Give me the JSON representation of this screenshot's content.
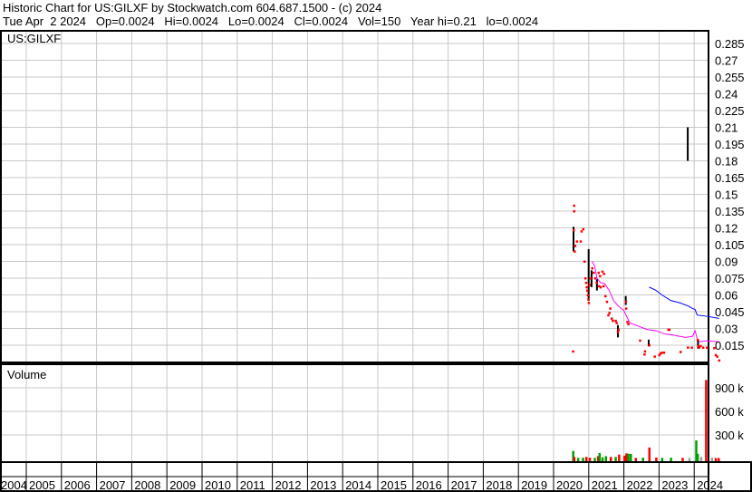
{
  "header": {
    "title": "Historic Chart for US:GILXF by Stockwatch.com 604.687.1500 - (c) 2024",
    "quote": "Tue Apr  2 2024   Op=0.0024   Hi=0.0024   Lo=0.0024   Cl=0.0024   Vol=150   Year hi=0.21   lo=0.0024"
  },
  "chart_data": [
    {
      "type": "scatter",
      "title": "US:GILXF",
      "ylim": [
        0,
        0.29
      ],
      "y_ticks": [
        "0.285",
        "0.27",
        "0.255",
        "0.24",
        "0.225",
        "0.21",
        "0.195",
        "0.18",
        "0.165",
        "0.15",
        "0.135",
        "0.12",
        "0.105",
        "0.09",
        "0.075",
        "0.06",
        "0.045",
        "0.03",
        "0.015"
      ],
      "x_ticks": [
        "2004",
        "2005",
        "2006",
        "2007",
        "2008",
        "2009",
        "2010",
        "2011",
        "2012",
        "2013",
        "2014",
        "2015",
        "2016",
        "2017",
        "2018",
        "2019",
        "2020",
        "2021",
        "2022",
        "2023",
        "2024"
      ],
      "grid": true,
      "colors": {
        "close": "#ff0000",
        "range": "#000000",
        "ma_short": "#ff00ff",
        "ma_long": "#0000ff"
      },
      "close_points": [
        [
          "2020-07-19",
          0.0096
        ],
        [
          "2020-07-25",
          0.118
        ],
        [
          "2020-07-29",
          0.14
        ],
        [
          "2020-07-30",
          0.135
        ],
        [
          "2020-08-10",
          0.104
        ],
        [
          "2020-08-05",
          0.099
        ],
        [
          "2020-08-29",
          0.108
        ],
        [
          "2020-10-07",
          0.108
        ],
        [
          "2020-10-16",
          0.117
        ],
        [
          "2020-11-03",
          0.119
        ],
        [
          "2020-11-16",
          0.09
        ],
        [
          "2020-11-25",
          0.075
        ],
        [
          "2020-12-02",
          0.071
        ],
        [
          "2020-12-08",
          0.067
        ],
        [
          "2020-12-14",
          0.064
        ],
        [
          "2020-12-20",
          0.06
        ],
        [
          "2020-12-26",
          0.056
        ],
        [
          "2020-12-30",
          0.053
        ],
        [
          "2021-01-08",
          0.069
        ],
        [
          "2021-01-14",
          0.075
        ],
        [
          "2021-02-05",
          0.084
        ],
        [
          "2021-02-20",
          0.08
        ],
        [
          "2021-03-05",
          0.075
        ],
        [
          "2021-03-20",
          0.071
        ],
        [
          "2021-04-10",
          0.08
        ],
        [
          "2021-04-25",
          0.077
        ],
        [
          "2021-05-20",
          0.081
        ],
        [
          "2021-06-05",
          0.079
        ],
        [
          "2021-04-15",
          0.068
        ],
        [
          "2021-05-01",
          0.067
        ],
        [
          "2021-06-01",
          0.068
        ],
        [
          "2021-06-20",
          0.059
        ],
        [
          "2021-07-05",
          0.054
        ],
        [
          "2021-08-10",
          0.048
        ],
        [
          "2021-08-01",
          0.044
        ],
        [
          "2021-07-20",
          0.042
        ],
        [
          "2021-08-25",
          0.039
        ],
        [
          "2021-09-05",
          0.037
        ],
        [
          "2021-10-05",
          0.037
        ],
        [
          "2021-10-15",
          0.035
        ],
        [
          "2021-10-28",
          0.027
        ],
        [
          "2021-11-05",
          0.029
        ],
        [
          "2022-01-20",
          0.054
        ],
        [
          "2022-01-22",
          0.048
        ],
        [
          "2022-02-05",
          0.036
        ],
        [
          "2022-02-15",
          0.034
        ],
        [
          "2022-06-15",
          0.0193
        ],
        [
          "2022-09-20",
          0.0152
        ],
        [
          "2022-08-05",
          0.0096
        ],
        [
          "2022-07-30",
          0.0069
        ],
        [
          "2022-11-15",
          0.005
        ],
        [
          "2023-01-01",
          0.0063
        ],
        [
          "2023-01-15",
          0.0077
        ],
        [
          "2023-01-28",
          0.0085
        ],
        [
          "2023-02-20",
          0.0085
        ],
        [
          "2023-04-05",
          0.029
        ],
        [
          "2023-04-15",
          0.029
        ],
        [
          "2023-08-10",
          0.0091
        ],
        [
          "2023-10-25",
          0.0131
        ],
        [
          "2023-12-05",
          0.013
        ],
        [
          "2024-02-05",
          0.0199
        ],
        [
          "2024-02-12",
          0.0144
        ],
        [
          "2024-02-20",
          0.013
        ],
        [
          "2024-03-05",
          0.0144
        ],
        [
          "2024-04-01",
          0.013
        ],
        [
          "2024-05-10",
          0.013
        ],
        [
          "2024-07-25",
          0.0126
        ],
        [
          "2024-08-10",
          0.0063
        ],
        [
          "2024-08-25",
          0.005
        ],
        [
          "2024-09-15",
          0.0015
        ]
      ],
      "range_bars": [
        [
          "2020-07-25",
          0.099,
          0.121
        ],
        [
          "2020-12-30",
          0.055,
          0.101
        ],
        [
          "2021-01-30",
          0.067,
          0.082
        ],
        [
          "2021-03-25",
          0.064,
          0.074
        ],
        [
          "2021-10-30",
          0.022,
          0.033
        ],
        [
          "2022-01-20",
          0.051,
          0.059
        ],
        [
          "2022-09-15",
          0.014,
          0.02
        ],
        [
          "2023-10-25",
          0.18,
          0.21
        ],
        [
          "2024-02-10",
          0.012,
          0.02
        ]
      ],
      "ma_short": [
        [
          "2021-02-05",
          0.09
        ],
        [
          "2021-03-01",
          0.086
        ],
        [
          "2021-03-25",
          0.075
        ],
        [
          "2021-05-01",
          0.071
        ],
        [
          "2021-06-15",
          0.07
        ],
        [
          "2021-08-01",
          0.064
        ],
        [
          "2021-09-15",
          0.055
        ],
        [
          "2021-11-05",
          0.05
        ],
        [
          "2022-01-01",
          0.046
        ],
        [
          "2022-03-01",
          0.035
        ],
        [
          "2022-06-01",
          0.032
        ],
        [
          "2022-09-01",
          0.029
        ],
        [
          "2022-12-01",
          0.028
        ],
        [
          "2023-03-01",
          0.025
        ],
        [
          "2023-06-01",
          0.024
        ],
        [
          "2023-10-01",
          0.022
        ],
        [
          "2023-12-15",
          0.023
        ],
        [
          "2024-01-10",
          0.028
        ],
        [
          "2024-02-10",
          0.018
        ],
        [
          "2024-05-01",
          0.019
        ],
        [
          "2024-09-15",
          0.018
        ]
      ],
      "ma_long": [
        [
          "2022-09-20",
          0.067
        ],
        [
          "2022-12-01",
          0.064
        ],
        [
          "2023-02-01",
          0.06
        ],
        [
          "2023-05-01",
          0.055
        ],
        [
          "2023-08-01",
          0.053
        ],
        [
          "2023-11-01",
          0.05
        ],
        [
          "2023-12-10",
          0.048
        ],
        [
          "2024-01-10",
          0.047
        ],
        [
          "2024-02-01",
          0.042
        ],
        [
          "2024-05-01",
          0.041
        ],
        [
          "2024-09-15",
          0.039
        ]
      ]
    },
    {
      "type": "bar",
      "title": "Volume",
      "ylim": [
        0,
        1100000
      ],
      "y_ticks": [
        "900 k",
        "600 k",
        "300 k"
      ],
      "grid": true,
      "colors": {
        "up": "#00a000",
        "down": "#ff0000",
        "flat": "#a0a0a0"
      },
      "bars": [
        [
          "2020-07-20",
          96000,
          "up"
        ],
        [
          "2020-08-01",
          20000,
          "down"
        ],
        [
          "2020-09-10",
          8000,
          "up"
        ],
        [
          "2020-11-01",
          10000,
          "up"
        ],
        [
          "2020-12-05",
          20000,
          "down"
        ],
        [
          "2021-01-10",
          10000,
          "down"
        ],
        [
          "2021-03-01",
          8000,
          "up"
        ],
        [
          "2021-04-05",
          30000,
          "down"
        ],
        [
          "2021-04-20",
          70000,
          "up"
        ],
        [
          "2021-05-20",
          15000,
          "up"
        ],
        [
          "2021-06-25",
          30000,
          "up"
        ],
        [
          "2021-08-15",
          20000,
          "down"
        ],
        [
          "2021-10-05",
          20000,
          "up"
        ],
        [
          "2021-11-10",
          50000,
          "down"
        ],
        [
          "2022-01-05",
          35000,
          "down"
        ],
        [
          "2022-01-25",
          65000,
          "down"
        ],
        [
          "2022-02-15",
          60000,
          "up"
        ],
        [
          "2022-03-10",
          58000,
          "up"
        ],
        [
          "2022-05-01",
          8000,
          "down"
        ],
        [
          "2022-07-15",
          10000,
          "up"
        ],
        [
          "2022-09-20",
          140000,
          "down"
        ],
        [
          "2022-12-01",
          12000,
          "down"
        ],
        [
          "2023-02-01",
          8000,
          "up"
        ],
        [
          "2023-05-01",
          10000,
          "up"
        ],
        [
          "2023-09-01",
          8000,
          "down"
        ],
        [
          "2023-11-10",
          8000,
          "flat"
        ],
        [
          "2024-01-20",
          230000,
          "up"
        ],
        [
          "2024-02-05",
          60000,
          "up"
        ],
        [
          "2024-03-10",
          20000,
          "flat"
        ],
        [
          "2024-05-01",
          1000000,
          "down"
        ],
        [
          "2024-07-01",
          10000,
          "flat"
        ],
        [
          "2024-08-10",
          6000,
          "down"
        ],
        [
          "2024-09-10",
          6000,
          "down"
        ]
      ]
    }
  ]
}
